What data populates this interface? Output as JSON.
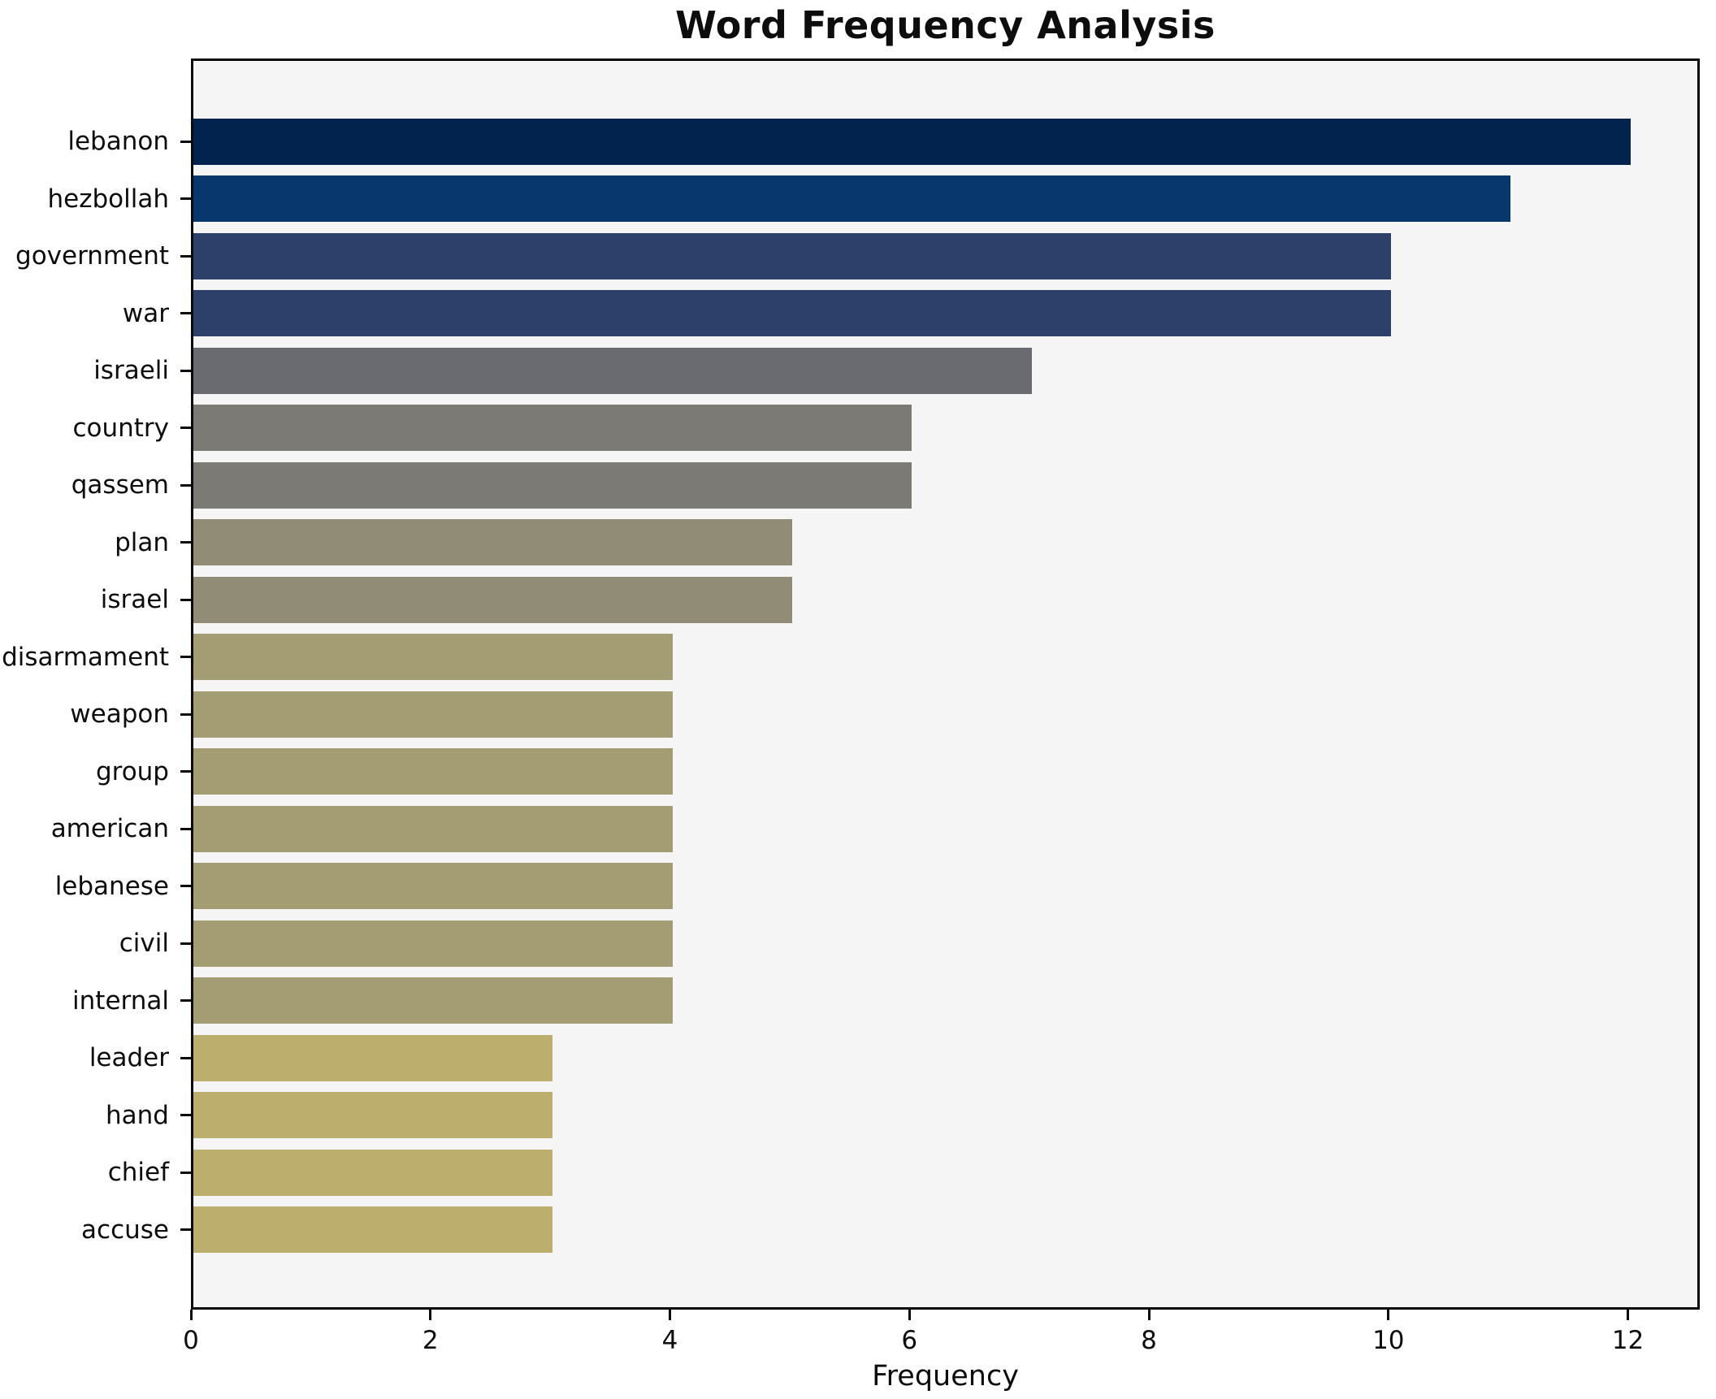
{
  "title": "Word Frequency Analysis",
  "xlabel": "Frequency",
  "chart_data": {
    "type": "bar",
    "orientation": "horizontal",
    "title": "Word Frequency Analysis",
    "xlabel": "Frequency",
    "ylabel": "",
    "grid": false,
    "legend": false,
    "plot_background": "#f5f5f6",
    "figure_background": "#ffffff",
    "xlim": [
      0,
      12.6
    ],
    "xticks": [
      0,
      2,
      4,
      6,
      8,
      10,
      12
    ],
    "categories": [
      "lebanon",
      "hezbollah",
      "government",
      "war",
      "israeli",
      "country",
      "qassem",
      "plan",
      "israel",
      "disarmament",
      "weapon",
      "group",
      "american",
      "lebanese",
      "civil",
      "internal",
      "leader",
      "hand",
      "chief",
      "accuse"
    ],
    "values": [
      12,
      11,
      10,
      10,
      7,
      6,
      6,
      5,
      5,
      4,
      4,
      4,
      4,
      4,
      4,
      4,
      3,
      3,
      3,
      3
    ],
    "bar_colors": [
      "#02234e",
      "#08376e",
      "#2d4069",
      "#2d4069",
      "#6a6b71",
      "#7b7a74",
      "#7b7a74",
      "#918c75",
      "#918c75",
      "#a49c72",
      "#a49c72",
      "#a49c72",
      "#a49c72",
      "#a49c72",
      "#a49c72",
      "#a49c72",
      "#bcae6c",
      "#bcae6c",
      "#bcae6c",
      "#bcae6c"
    ]
  }
}
